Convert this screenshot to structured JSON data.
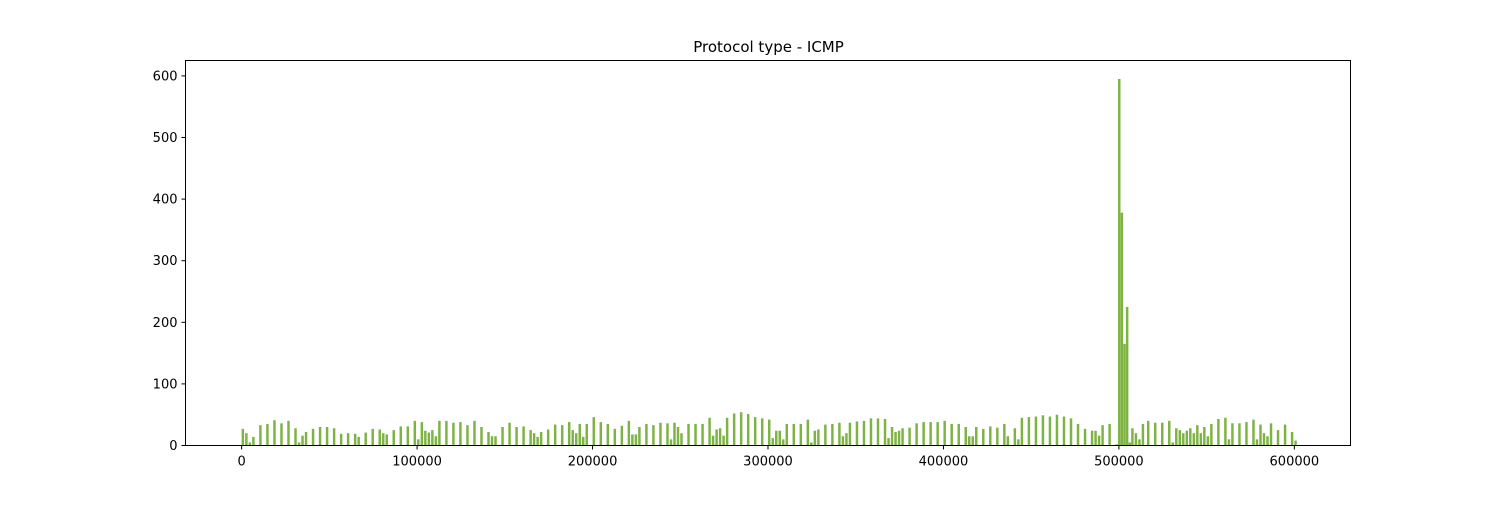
{
  "chart_data": {
    "type": "bar",
    "title": "Protocol type - ICMP",
    "xlabel": "",
    "ylabel": "",
    "xlim": [
      -32000,
      632000
    ],
    "ylim": [
      0,
      625
    ],
    "bar_width": 1400,
    "x_ticks": [
      0,
      100000,
      200000,
      300000,
      400000,
      500000,
      600000
    ],
    "y_ticks": [
      0,
      100,
      200,
      300,
      400,
      500,
      600
    ],
    "bar_color": "#7cb342",
    "grid": false,
    "bars": [
      [
        0,
        27
      ],
      [
        2000,
        20
      ],
      [
        4000,
        5
      ],
      [
        6000,
        14
      ],
      [
        10000,
        33
      ],
      [
        14000,
        35
      ],
      [
        18000,
        41
      ],
      [
        22000,
        36
      ],
      [
        26000,
        40
      ],
      [
        30000,
        28
      ],
      [
        32000,
        5
      ],
      [
        34000,
        16
      ],
      [
        36000,
        22
      ],
      [
        40000,
        27
      ],
      [
        44000,
        30
      ],
      [
        48000,
        30
      ],
      [
        52000,
        28
      ],
      [
        56000,
        19
      ],
      [
        60000,
        20
      ],
      [
        64000,
        19
      ],
      [
        66000,
        14
      ],
      [
        70000,
        21
      ],
      [
        74000,
        27
      ],
      [
        78000,
        26
      ],
      [
        80000,
        20
      ],
      [
        82000,
        18
      ],
      [
        86000,
        25
      ],
      [
        90000,
        31
      ],
      [
        94000,
        31
      ],
      [
        98000,
        40
      ],
      [
        100000,
        10
      ],
      [
        102000,
        38
      ],
      [
        104000,
        24
      ],
      [
        106000,
        21
      ],
      [
        108000,
        25
      ],
      [
        110000,
        15
      ],
      [
        112000,
        40
      ],
      [
        116000,
        40
      ],
      [
        120000,
        37
      ],
      [
        124000,
        38
      ],
      [
        128000,
        33
      ],
      [
        132000,
        40
      ],
      [
        136000,
        30
      ],
      [
        140000,
        22
      ],
      [
        142000,
        15
      ],
      [
        144000,
        15
      ],
      [
        148000,
        30
      ],
      [
        152000,
        37
      ],
      [
        156000,
        30
      ],
      [
        160000,
        31
      ],
      [
        164000,
        25
      ],
      [
        166000,
        20
      ],
      [
        168000,
        14
      ],
      [
        170000,
        22
      ],
      [
        174000,
        26
      ],
      [
        178000,
        34
      ],
      [
        182000,
        33
      ],
      [
        186000,
        38
      ],
      [
        188000,
        25
      ],
      [
        190000,
        20
      ],
      [
        192000,
        35
      ],
      [
        194000,
        14
      ],
      [
        196000,
        35
      ],
      [
        200000,
        46
      ],
      [
        204000,
        38
      ],
      [
        208000,
        35
      ],
      [
        212000,
        27
      ],
      [
        216000,
        32
      ],
      [
        220000,
        40
      ],
      [
        222000,
        18
      ],
      [
        224000,
        18
      ],
      [
        226000,
        30
      ],
      [
        230000,
        35
      ],
      [
        234000,
        33
      ],
      [
        238000,
        37
      ],
      [
        242000,
        36
      ],
      [
        244000,
        10
      ],
      [
        246000,
        37
      ],
      [
        248000,
        30
      ],
      [
        250000,
        20
      ],
      [
        254000,
        35
      ],
      [
        258000,
        35
      ],
      [
        262000,
        35
      ],
      [
        266000,
        45
      ],
      [
        268000,
        16
      ],
      [
        270000,
        26
      ],
      [
        272000,
        28
      ],
      [
        274000,
        16
      ],
      [
        276000,
        45
      ],
      [
        280000,
        52
      ],
      [
        284000,
        54
      ],
      [
        288000,
        51
      ],
      [
        292000,
        46
      ],
      [
        296000,
        44
      ],
      [
        300000,
        42
      ],
      [
        302000,
        12
      ],
      [
        304000,
        24
      ],
      [
        306000,
        24
      ],
      [
        308000,
        10
      ],
      [
        310000,
        35
      ],
      [
        314000,
        35
      ],
      [
        318000,
        35
      ],
      [
        322000,
        42
      ],
      [
        324000,
        5
      ],
      [
        326000,
        24
      ],
      [
        328000,
        26
      ],
      [
        332000,
        34
      ],
      [
        336000,
        35
      ],
      [
        340000,
        37
      ],
      [
        342000,
        15
      ],
      [
        344000,
        20
      ],
      [
        346000,
        37
      ],
      [
        350000,
        39
      ],
      [
        354000,
        40
      ],
      [
        358000,
        44
      ],
      [
        362000,
        44
      ],
      [
        366000,
        43
      ],
      [
        368000,
        12
      ],
      [
        370000,
        30
      ],
      [
        372000,
        22
      ],
      [
        374000,
        24
      ],
      [
        376000,
        28
      ],
      [
        380000,
        29
      ],
      [
        384000,
        36
      ],
      [
        388000,
        38
      ],
      [
        392000,
        38
      ],
      [
        396000,
        38
      ],
      [
        400000,
        40
      ],
      [
        404000,
        35
      ],
      [
        408000,
        35
      ],
      [
        412000,
        30
      ],
      [
        414000,
        15
      ],
      [
        416000,
        15
      ],
      [
        418000,
        30
      ],
      [
        422000,
        27
      ],
      [
        426000,
        31
      ],
      [
        430000,
        29
      ],
      [
        434000,
        35
      ],
      [
        436000,
        15
      ],
      [
        440000,
        28
      ],
      [
        442000,
        10
      ],
      [
        444000,
        45
      ],
      [
        448000,
        46
      ],
      [
        452000,
        47
      ],
      [
        456000,
        49
      ],
      [
        460000,
        47
      ],
      [
        464000,
        50
      ],
      [
        468000,
        47
      ],
      [
        472000,
        44
      ],
      [
        476000,
        35
      ],
      [
        480000,
        27
      ],
      [
        484000,
        24
      ],
      [
        486000,
        24
      ],
      [
        488000,
        16
      ],
      [
        490000,
        33
      ],
      [
        494000,
        35
      ],
      [
        498000,
        2
      ],
      [
        499500,
        595
      ],
      [
        501000,
        378
      ],
      [
        502500,
        165
      ],
      [
        504000,
        225
      ],
      [
        505500,
        5
      ],
      [
        507000,
        28
      ],
      [
        509000,
        20
      ],
      [
        511000,
        10
      ],
      [
        513000,
        35
      ],
      [
        516000,
        40
      ],
      [
        520000,
        37
      ],
      [
        524000,
        37
      ],
      [
        528000,
        40
      ],
      [
        530000,
        5
      ],
      [
        532000,
        28
      ],
      [
        534000,
        25
      ],
      [
        536000,
        20
      ],
      [
        538000,
        24
      ],
      [
        540000,
        28
      ],
      [
        542000,
        20
      ],
      [
        544000,
        33
      ],
      [
        546000,
        20
      ],
      [
        548000,
        30
      ],
      [
        550000,
        15
      ],
      [
        552000,
        35
      ],
      [
        556000,
        43
      ],
      [
        560000,
        45
      ],
      [
        562000,
        10
      ],
      [
        564000,
        36
      ],
      [
        568000,
        36
      ],
      [
        572000,
        38
      ],
      [
        576000,
        42
      ],
      [
        578000,
        10
      ],
      [
        580000,
        34
      ],
      [
        582000,
        20
      ],
      [
        584000,
        15
      ],
      [
        586000,
        36
      ],
      [
        590000,
        25
      ],
      [
        594000,
        34
      ],
      [
        598000,
        22
      ],
      [
        600000,
        8
      ]
    ]
  }
}
